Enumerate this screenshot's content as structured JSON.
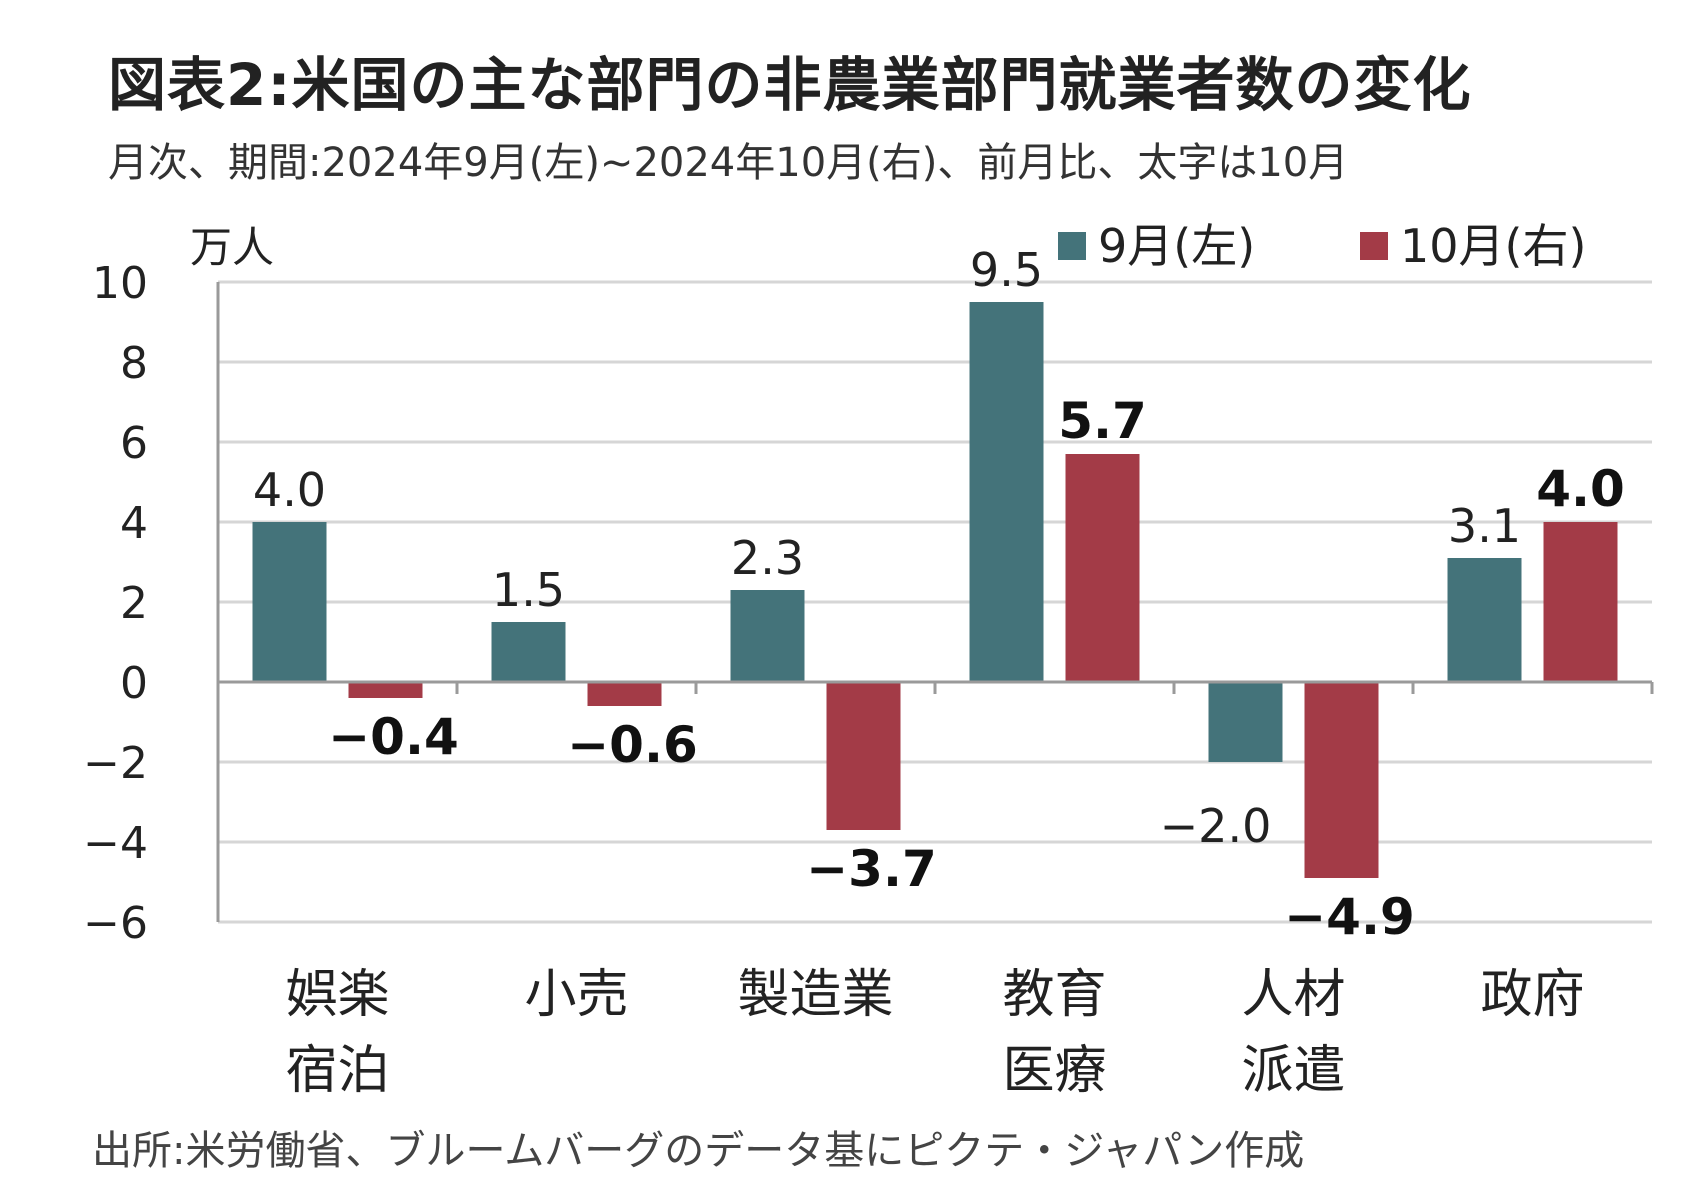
{
  "header": {
    "title": "図表2:米国の主な部門の非農業部門就業者数の変化",
    "subtitle": "月次、期間:2024年9月(左)~2024年10月(右)、前月比、太字は10月"
  },
  "footer": {
    "source": "出所:米労働省、ブルームバーグのデータ基にピクテ・ジャパン作成"
  },
  "colors": {
    "sep": "#44737a",
    "oct": "#a33b47",
    "grid": "#d6d6d6",
    "axis": "#9a9a9a"
  },
  "chart_data": {
    "type": "bar",
    "title": "図表2:米国の主な部門の非農業部門就業者数の変化",
    "unit": "万人",
    "categories": [
      [
        "娯楽",
        "宿泊"
      ],
      [
        "小売"
      ],
      [
        "製造業"
      ],
      [
        "教育",
        "医療"
      ],
      [
        "人材",
        "派遣"
      ],
      [
        "政府"
      ]
    ],
    "series": [
      {
        "name": "9月(左)",
        "values": [
          4.0,
          1.5,
          2.3,
          9.5,
          -2.0,
          3.1
        ],
        "labels": [
          "4.0",
          "1.5",
          "2.3",
          "9.5",
          "−2.0",
          "3.1"
        ]
      },
      {
        "name": "10月(右)",
        "values": [
          -0.4,
          -0.6,
          -3.7,
          5.7,
          -4.9,
          4.0
        ],
        "labels": [
          "−0.4",
          "−0.6",
          "−3.7",
          "5.7",
          "−4.9",
          "4.0"
        ]
      }
    ],
    "ylim": [
      -6,
      10
    ],
    "yticks": [
      10,
      8,
      6,
      4,
      2,
      0,
      -2,
      -4,
      -6
    ],
    "ytick_labels": [
      "10",
      "8",
      "6",
      "4",
      "2",
      "0",
      "−2",
      "−4",
      "−6"
    ],
    "grid": true,
    "legend": "top-right"
  }
}
